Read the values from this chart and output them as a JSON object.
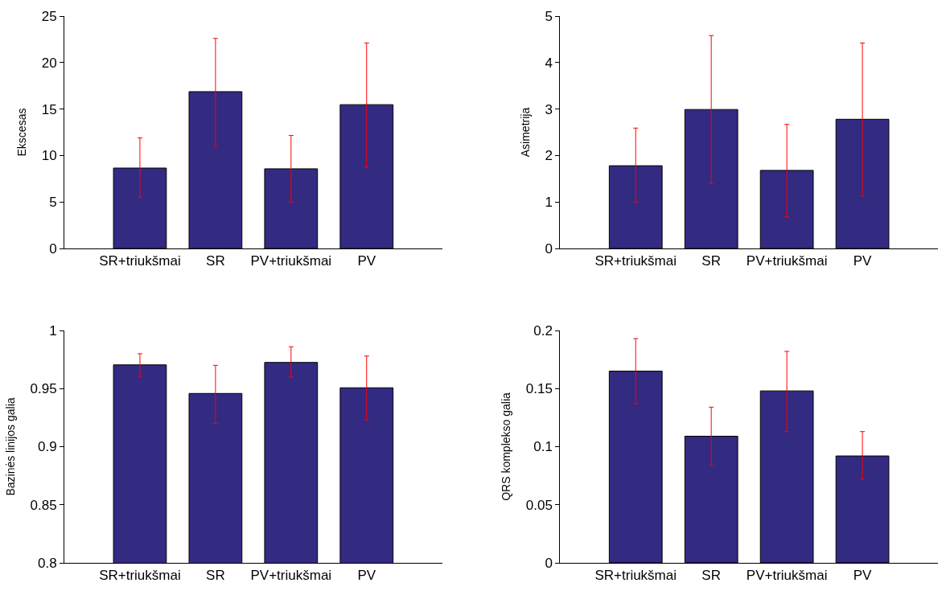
{
  "chart_data": [
    {
      "type": "bar",
      "ylabel": "Ekscesas",
      "categories": [
        "SR+triukšmai",
        "SR",
        "PV+triukšmai",
        "PV"
      ],
      "values": [
        8.65,
        16.87,
        8.57,
        15.47
      ],
      "errors": [
        [
          5.5,
          11.9
        ],
        [
          11.0,
          22.6
        ],
        [
          5.0,
          12.15
        ],
        [
          8.74,
          22.1
        ]
      ],
      "color": "#332a82",
      "ylim": [
        0,
        25
      ],
      "yticks": [
        0,
        5,
        10,
        15,
        20,
        25
      ]
    },
    {
      "type": "bar",
      "ylabel": "Asimetrija",
      "categories": [
        "SR+triukšmai",
        "SR",
        "PV+triukšmai",
        "PV"
      ],
      "values": [
        1.78,
        2.99,
        1.68,
        2.78
      ],
      "errors": [
        [
          1.0,
          2.59
        ],
        [
          1.4,
          4.58
        ],
        [
          0.68,
          2.67
        ],
        [
          1.13,
          4.42
        ]
      ],
      "color": "#332a82",
      "ylim": [
        0,
        5
      ],
      "yticks": [
        0,
        1,
        2,
        3,
        4,
        5
      ]
    },
    {
      "type": "bar",
      "ylabel": "Bazinės linijos galia",
      "categories": [
        "SR+triukšmai",
        "SR",
        "PV+triukšmai",
        "PV"
      ],
      "values": [
        0.9704,
        0.9458,
        0.9725,
        0.9507
      ],
      "errors": [
        [
          0.9606,
          0.98
        ],
        [
          0.92,
          0.97
        ],
        [
          0.96,
          0.986
        ],
        [
          0.923,
          0.978
        ]
      ],
      "color": "#332a82",
      "ylim": [
        0.8,
        1
      ],
      "yticks": [
        0.8,
        0.85,
        0.9,
        0.95,
        1
      ]
    },
    {
      "type": "bar",
      "ylabel": "QRS komplekso galia",
      "categories": [
        "SR+triukšmai",
        "SR",
        "PV+triukšmai",
        "PV"
      ],
      "values": [
        0.165,
        0.109,
        0.148,
        0.092
      ],
      "errors": [
        [
          0.137,
          0.193
        ],
        [
          0.084,
          0.134
        ],
        [
          0.113,
          0.182
        ],
        [
          0.072,
          0.113
        ]
      ],
      "color": "#332a82",
      "ylim": [
        0,
        0.2
      ],
      "yticks": [
        0,
        0.05,
        0.1,
        0.15,
        0.2
      ]
    }
  ]
}
